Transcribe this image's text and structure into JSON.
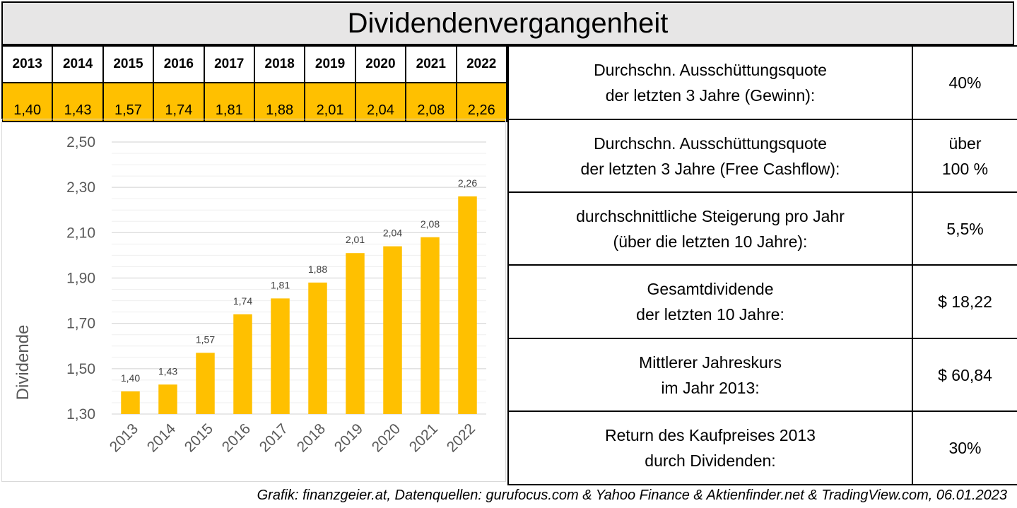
{
  "title": "Dividendenvergangenheit",
  "years": [
    "2013",
    "2014",
    "2015",
    "2016",
    "2017",
    "2018",
    "2019",
    "2020",
    "2021",
    "2022"
  ],
  "dividends": [
    "1,40",
    "1,43",
    "1,57",
    "1,74",
    "1,81",
    "1,88",
    "2,01",
    "2,04",
    "2,08",
    "2,26"
  ],
  "metrics": [
    {
      "label_line1": "Durchschn. Ausschüttungsquote",
      "label_line2": "der letzten 3 Jahre (Gewinn):",
      "value_line1": "40%",
      "value_line2": ""
    },
    {
      "label_line1": "Durchschn. Ausschüttungsquote",
      "label_line2": "der letzten 3 Jahre (Free Cashflow):",
      "value_line1": "über",
      "value_line2": "100 %"
    },
    {
      "label_line1": "durchschnittliche Steigerung pro Jahr",
      "label_line2": "(über die letzten 10 Jahre):",
      "value_line1": "5,5%",
      "value_line2": ""
    },
    {
      "label_line1": "Gesamtdividende",
      "label_line2": "der letzten 10 Jahre:",
      "value_line1": "$ 18,22",
      "value_line2": ""
    },
    {
      "label_line1": "Mittlerer Jahreskurs",
      "label_line2": "im Jahr 2013:",
      "value_line1": "$ 60,84",
      "value_line2": ""
    },
    {
      "label_line1": "Return des Kaufpreises 2013",
      "label_line2": "durch Dividenden:",
      "value_line1": "30%",
      "value_line2": ""
    }
  ],
  "footer": "Grafik: finanzgeier.at, Datenquellen: gurufocus.com & Yahoo Finance & Aktienfinder.net & TradingView.com, 06.01.2023",
  "colors": {
    "bar": "#ffc000",
    "header_bg": "#e7e6e6",
    "grid": "#d9d9d9",
    "axis_text": "#595959"
  },
  "chart_data": {
    "type": "bar",
    "categories": [
      "2013",
      "2014",
      "2015",
      "2016",
      "2017",
      "2018",
      "2019",
      "2020",
      "2021",
      "2022"
    ],
    "values": [
      1.4,
      1.43,
      1.57,
      1.74,
      1.81,
      1.88,
      2.01,
      2.04,
      2.08,
      2.26
    ],
    "data_labels": [
      "1,40",
      "1,43",
      "1,57",
      "1,74",
      "1,81",
      "1,88",
      "2,01",
      "2,04",
      "2,08",
      "2,26"
    ],
    "ylabel": "Dividende",
    "ylim": [
      1.3,
      2.5
    ],
    "yticks": [
      "1,30",
      "1,50",
      "1,70",
      "1,90",
      "2,10",
      "2,30",
      "2,50"
    ],
    "ytick_values": [
      1.3,
      1.5,
      1.7,
      1.9,
      2.1,
      2.3,
      2.5
    ],
    "grid": true,
    "legend": "none"
  }
}
